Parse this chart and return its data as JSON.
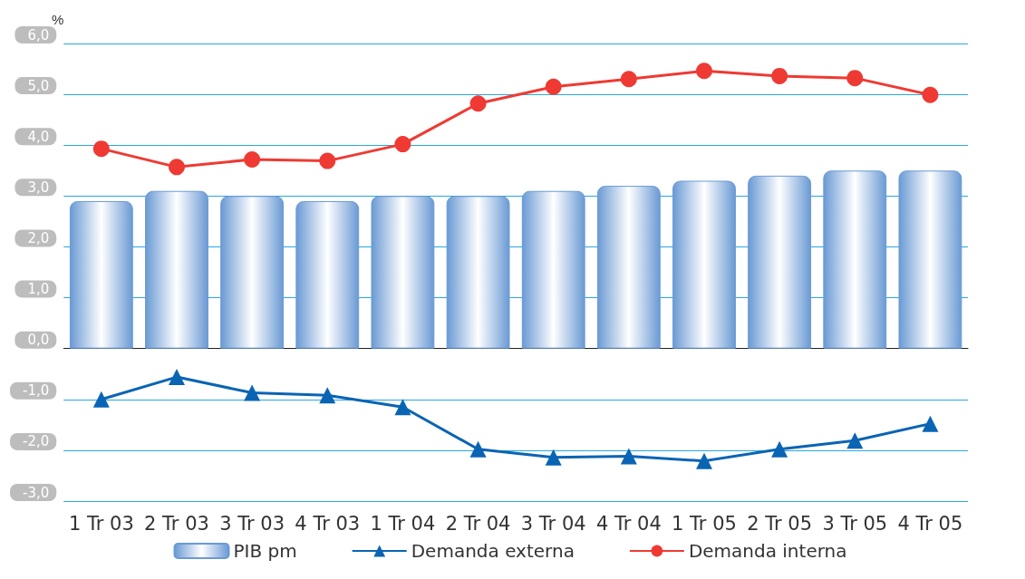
{
  "chart_data": {
    "type": "bar",
    "ylabel": "%",
    "categories": [
      "1 Tr 03",
      "2 Tr 03",
      "3 Tr 03",
      "4 Tr 03",
      "1 Tr 04",
      "2 Tr 04",
      "3 Tr 04",
      "4 Tr 04",
      "1 Tr 05",
      "2 Tr 05",
      "3 Tr 05",
      "4 Tr 05"
    ],
    "series": [
      {
        "name": "PIB pm",
        "color": "#6a9ad4",
        "values": [
          2.9,
          3.1,
          3.0,
          2.9,
          3.0,
          3.0,
          3.1,
          3.2,
          3.3,
          3.4,
          3.5,
          3.5
        ]
      },
      {
        "name": "Demanda externa",
        "type": "line",
        "color": "#0a64b4",
        "marker": "triangle",
        "values": [
          -1.0,
          -0.56,
          -0.87,
          -0.92,
          -1.15,
          -1.98,
          -2.14,
          -2.12,
          -2.21,
          -1.98,
          -1.81,
          -1.48
        ]
      },
      {
        "name": "Demanda interna",
        "type": "line",
        "color": "#ee3a33",
        "marker": "circle",
        "values": [
          3.93,
          3.57,
          3.72,
          3.69,
          4.02,
          4.82,
          5.15,
          5.3,
          5.46,
          5.36,
          5.32,
          4.99
        ]
      }
    ],
    "ylim": [
      -3,
      6
    ],
    "yticks": [
      {
        "value": -3,
        "label": "-3,0"
      },
      {
        "value": -2,
        "label": "-2,0"
      },
      {
        "value": -1,
        "label": "-1,0"
      },
      {
        "value": 0,
        "label": "0,0"
      },
      {
        "value": 1,
        "label": "1,0"
      },
      {
        "value": 2,
        "label": "2,0"
      },
      {
        "value": 3,
        "label": "3,0"
      },
      {
        "value": 4,
        "label": "4,0"
      },
      {
        "value": 5,
        "label": "5,0"
      },
      {
        "value": 6,
        "label": "6,0"
      }
    ],
    "grid": "y",
    "legend": "bottom",
    "line_style": "solid"
  }
}
